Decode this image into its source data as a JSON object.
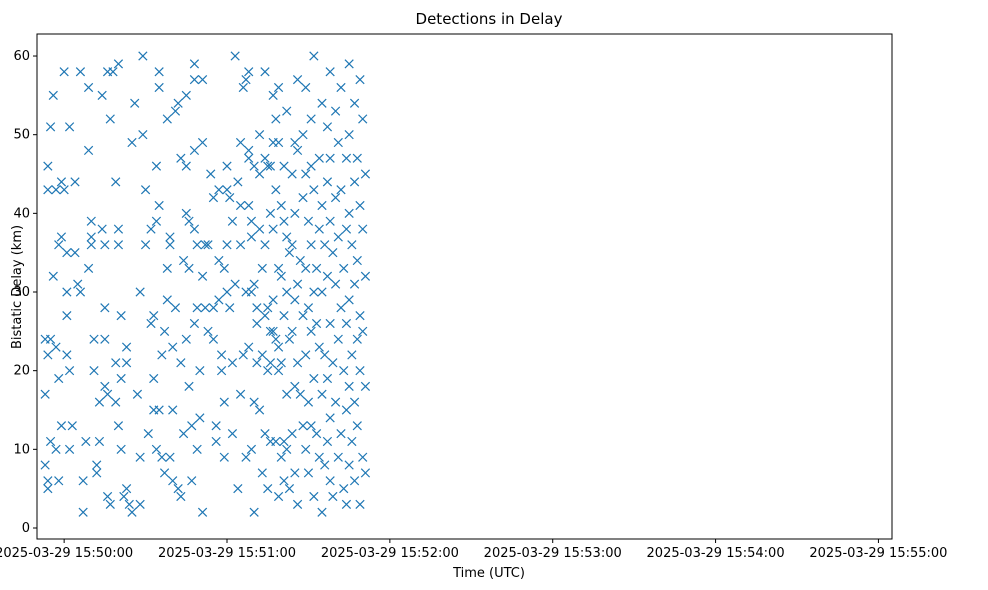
{
  "chart_data": {
    "type": "scatter",
    "title": "Detections in Delay",
    "xlabel": "Time (UTC)",
    "ylabel": "Bistatic Delay (km)",
    "marker": "x",
    "color": "#1f77b4",
    "x_unit": "seconds since 2025-03-29 15:50:00",
    "xlim": [
      -10,
      305
    ],
    "ylim": [
      -1.4,
      62.8
    ],
    "x_ticks": [
      {
        "value": 0,
        "label": "2025-03-29 15:50:00"
      },
      {
        "value": 60,
        "label": "2025-03-29 15:51:00"
      },
      {
        "value": 120,
        "label": "2025-03-29 15:52:00"
      },
      {
        "value": 180,
        "label": "2025-03-29 15:53:00"
      },
      {
        "value": 240,
        "label": "2025-03-29 15:54:00"
      },
      {
        "value": 300,
        "label": "2025-03-29 15:55:00"
      }
    ],
    "y_ticks": [
      {
        "value": 0,
        "label": "0"
      },
      {
        "value": 10,
        "label": "10"
      },
      {
        "value": 20,
        "label": "20"
      },
      {
        "value": 30,
        "label": "30"
      },
      {
        "value": 40,
        "label": "40"
      },
      {
        "value": 50,
        "label": "50"
      },
      {
        "value": 60,
        "label": "60"
      }
    ],
    "points": [
      [
        -7,
        24
      ],
      [
        -7,
        17
      ],
      [
        -6,
        46
      ],
      [
        -6,
        43
      ],
      [
        -5,
        51
      ],
      [
        -5,
        24
      ],
      [
        -6,
        22
      ],
      [
        -5,
        11
      ],
      [
        -4,
        55
      ],
      [
        -4,
        32
      ],
      [
        -3,
        43
      ],
      [
        -2,
        19
      ],
      [
        -3,
        10
      ],
      [
        -7,
        8
      ],
      [
        -6,
        6
      ],
      [
        -6,
        5
      ],
      [
        -2,
        6
      ],
      [
        -1,
        44
      ],
      [
        -2,
        36
      ],
      [
        -1,
        37
      ],
      [
        -1,
        13
      ],
      [
        -3,
        23
      ],
      [
        0,
        58
      ],
      [
        0,
        43
      ],
      [
        1,
        35
      ],
      [
        1,
        30
      ],
      [
        1,
        27
      ],
      [
        1,
        22
      ],
      [
        2,
        51
      ],
      [
        2,
        20
      ],
      [
        3,
        13
      ],
      [
        2,
        10
      ],
      [
        4,
        35
      ],
      [
        4,
        44
      ],
      [
        6,
        58
      ],
      [
        5,
        31
      ],
      [
        6,
        30
      ],
      [
        7,
        2
      ],
      [
        7,
        6
      ],
      [
        8,
        11
      ],
      [
        9,
        48
      ],
      [
        9,
        56
      ],
      [
        9,
        33
      ],
      [
        10,
        39
      ],
      [
        10,
        36
      ],
      [
        10,
        37
      ],
      [
        11,
        24
      ],
      [
        11,
        20
      ],
      [
        12,
        8
      ],
      [
        12,
        7
      ],
      [
        13,
        16
      ],
      [
        13,
        11
      ],
      [
        14,
        55
      ],
      [
        14,
        38
      ],
      [
        15,
        36
      ],
      [
        15,
        28
      ],
      [
        15,
        24
      ],
      [
        15,
        18
      ],
      [
        16,
        58
      ],
      [
        16,
        17
      ],
      [
        16,
        4
      ],
      [
        17,
        3
      ],
      [
        17,
        52
      ],
      [
        18,
        58
      ],
      [
        19,
        44
      ],
      [
        19,
        16
      ],
      [
        19,
        21
      ],
      [
        20,
        59
      ],
      [
        20,
        38
      ],
      [
        20,
        36
      ],
      [
        20,
        13
      ],
      [
        21,
        27
      ],
      [
        21,
        19
      ],
      [
        21,
        10
      ],
      [
        22,
        4
      ],
      [
        23,
        5
      ],
      [
        23,
        23
      ],
      [
        23,
        21
      ],
      [
        24,
        3
      ],
      [
        25,
        2
      ],
      [
        25,
        49
      ],
      [
        26,
        54
      ],
      [
        27,
        17
      ],
      [
        28,
        30
      ],
      [
        28,
        9
      ],
      [
        28,
        3
      ],
      [
        29,
        60
      ],
      [
        29,
        50
      ],
      [
        30,
        43
      ],
      [
        30,
        36
      ],
      [
        31,
        12
      ],
      [
        32,
        38
      ],
      [
        32,
        26
      ],
      [
        33,
        27
      ],
      [
        33,
        19
      ],
      [
        33,
        15
      ],
      [
        34,
        46
      ],
      [
        34,
        39
      ],
      [
        34,
        10
      ],
      [
        35,
        58
      ],
      [
        35,
        56
      ],
      [
        35,
        41
      ],
      [
        35,
        15
      ],
      [
        36,
        22
      ],
      [
        36,
        9
      ],
      [
        37,
        25
      ],
      [
        37,
        7
      ],
      [
        38,
        52
      ],
      [
        38,
        33
      ],
      [
        38,
        29
      ],
      [
        39,
        37
      ],
      [
        39,
        36
      ],
      [
        39,
        9
      ],
      [
        40,
        23
      ],
      [
        40,
        15
      ],
      [
        40,
        6
      ],
      [
        41,
        28
      ],
      [
        41,
        53
      ],
      [
        42,
        54
      ],
      [
        42,
        5
      ],
      [
        43,
        47
      ],
      [
        43,
        21
      ],
      [
        43,
        4
      ],
      [
        44,
        34
      ],
      [
        44,
        12
      ],
      [
        45,
        55
      ],
      [
        45,
        46
      ],
      [
        45,
        40
      ],
      [
        45,
        24
      ],
      [
        46,
        39
      ],
      [
        46,
        33
      ],
      [
        46,
        18
      ],
      [
        47,
        13
      ],
      [
        47,
        6
      ],
      [
        48,
        59
      ],
      [
        48,
        57
      ],
      [
        48,
        48
      ],
      [
        48,
        38
      ],
      [
        48,
        26
      ],
      [
        49,
        36
      ],
      [
        49,
        28
      ],
      [
        49,
        10
      ],
      [
        50,
        20
      ],
      [
        50,
        14
      ],
      [
        51,
        57
      ],
      [
        51,
        49
      ],
      [
        51,
        32
      ],
      [
        51,
        2
      ],
      [
        52,
        36
      ],
      [
        52,
        28
      ],
      [
        53,
        36
      ],
      [
        53,
        25
      ],
      [
        54,
        45
      ],
      [
        55,
        42
      ],
      [
        55,
        28
      ],
      [
        55,
        24
      ],
      [
        56,
        13
      ],
      [
        56,
        11
      ],
      [
        57,
        43
      ],
      [
        57,
        29
      ],
      [
        57,
        34
      ],
      [
        58,
        22
      ],
      [
        58,
        20
      ],
      [
        59,
        33
      ],
      [
        59,
        16
      ],
      [
        59,
        9
      ],
      [
        60,
        46
      ],
      [
        60,
        43
      ],
      [
        60,
        36
      ],
      [
        60,
        30
      ],
      [
        61,
        42
      ],
      [
        61,
        28
      ],
      [
        62,
        39
      ],
      [
        62,
        21
      ],
      [
        62,
        12
      ],
      [
        63,
        60
      ],
      [
        63,
        31
      ],
      [
        64,
        44
      ],
      [
        64,
        5
      ],
      [
        65,
        49
      ],
      [
        65,
        41
      ],
      [
        65,
        36
      ],
      [
        65,
        17
      ],
      [
        66,
        56
      ],
      [
        66,
        22
      ],
      [
        67,
        57
      ],
      [
        67,
        30
      ],
      [
        67,
        9
      ],
      [
        68,
        58
      ],
      [
        68,
        48
      ],
      [
        68,
        47
      ],
      [
        68,
        41
      ],
      [
        68,
        23
      ],
      [
        69,
        39
      ],
      [
        69,
        37
      ],
      [
        69,
        30
      ],
      [
        69,
        10
      ],
      [
        70,
        46
      ],
      [
        70,
        31
      ],
      [
        70,
        16
      ],
      [
        70,
        2
      ],
      [
        71,
        28
      ],
      [
        71,
        26
      ],
      [
        71,
        21
      ],
      [
        72,
        50
      ],
      [
        72,
        45
      ],
      [
        72,
        38
      ],
      [
        72,
        15
      ],
      [
        73,
        33
      ],
      [
        73,
        22
      ],
      [
        73,
        7
      ],
      [
        74,
        58
      ],
      [
        74,
        47
      ],
      [
        74,
        36
      ],
      [
        74,
        27
      ],
      [
        74,
        12
      ],
      [
        75,
        46
      ],
      [
        75,
        28
      ],
      [
        75,
        20
      ],
      [
        75,
        5
      ],
      [
        76,
        46
      ],
      [
        76,
        40
      ],
      [
        76,
        25
      ],
      [
        76,
        21
      ],
      [
        76,
        11
      ],
      [
        77,
        55
      ],
      [
        77,
        49
      ],
      [
        77,
        38
      ],
      [
        77,
        29
      ],
      [
        77,
        25
      ],
      [
        78,
        52
      ],
      [
        78,
        43
      ],
      [
        78,
        24
      ],
      [
        78,
        11
      ],
      [
        79,
        56
      ],
      [
        79,
        49
      ],
      [
        79,
        33
      ],
      [
        79,
        23
      ],
      [
        79,
        20
      ],
      [
        79,
        4
      ],
      [
        80,
        41
      ],
      [
        80,
        32
      ],
      [
        80,
        21
      ],
      [
        80,
        9
      ],
      [
        81,
        46
      ],
      [
        81,
        39
      ],
      [
        81,
        27
      ],
      [
        81,
        11
      ],
      [
        81,
        6
      ],
      [
        82,
        53
      ],
      [
        82,
        37
      ],
      [
        82,
        30
      ],
      [
        82,
        17
      ],
      [
        82,
        10
      ],
      [
        83,
        35
      ],
      [
        83,
        24
      ],
      [
        83,
        5
      ],
      [
        84,
        45
      ],
      [
        84,
        36
      ],
      [
        84,
        25
      ],
      [
        84,
        12
      ],
      [
        85,
        49
      ],
      [
        85,
        40
      ],
      [
        85,
        29
      ],
      [
        85,
        18
      ],
      [
        85,
        7
      ],
      [
        86,
        57
      ],
      [
        86,
        48
      ],
      [
        86,
        31
      ],
      [
        86,
        21
      ],
      [
        86,
        3
      ],
      [
        87,
        34
      ],
      [
        87,
        17
      ],
      [
        88,
        50
      ],
      [
        88,
        42
      ],
      [
        88,
        27
      ],
      [
        88,
        13
      ],
      [
        89,
        56
      ],
      [
        89,
        45
      ],
      [
        89,
        33
      ],
      [
        89,
        22
      ],
      [
        89,
        10
      ],
      [
        90,
        39
      ],
      [
        90,
        28
      ],
      [
        90,
        16
      ],
      [
        90,
        7
      ],
      [
        91,
        52
      ],
      [
        91,
        46
      ],
      [
        91,
        36
      ],
      [
        91,
        25
      ],
      [
        91,
        13
      ],
      [
        92,
        60
      ],
      [
        92,
        43
      ],
      [
        92,
        30
      ],
      [
        92,
        19
      ],
      [
        92,
        4
      ],
      [
        93,
        33
      ],
      [
        93,
        26
      ],
      [
        93,
        12
      ],
      [
        94,
        47
      ],
      [
        94,
        38
      ],
      [
        94,
        23
      ],
      [
        94,
        9
      ],
      [
        95,
        54
      ],
      [
        95,
        41
      ],
      [
        95,
        30
      ],
      [
        95,
        17
      ],
      [
        95,
        2
      ],
      [
        96,
        36
      ],
      [
        96,
        22
      ],
      [
        96,
        8
      ],
      [
        97,
        51
      ],
      [
        97,
        44
      ],
      [
        97,
        32
      ],
      [
        97,
        19
      ],
      [
        97,
        11
      ],
      [
        98,
        58
      ],
      [
        98,
        47
      ],
      [
        98,
        39
      ],
      [
        98,
        26
      ],
      [
        98,
        14
      ],
      [
        98,
        6
      ],
      [
        99,
        35
      ],
      [
        99,
        21
      ],
      [
        99,
        4
      ],
      [
        100,
        53
      ],
      [
        100,
        42
      ],
      [
        100,
        31
      ],
      [
        100,
        16
      ],
      [
        101,
        49
      ],
      [
        101,
        37
      ],
      [
        101,
        24
      ],
      [
        101,
        9
      ],
      [
        102,
        56
      ],
      [
        102,
        43
      ],
      [
        102,
        28
      ],
      [
        102,
        12
      ],
      [
        103,
        33
      ],
      [
        103,
        20
      ],
      [
        103,
        5
      ],
      [
        104,
        47
      ],
      [
        104,
        38
      ],
      [
        104,
        26
      ],
      [
        104,
        15
      ],
      [
        104,
        3
      ],
      [
        105,
        59
      ],
      [
        105,
        50
      ],
      [
        105,
        40
      ],
      [
        105,
        29
      ],
      [
        105,
        18
      ],
      [
        105,
        8
      ],
      [
        106,
        36
      ],
      [
        106,
        22
      ],
      [
        106,
        11
      ],
      [
        107,
        54
      ],
      [
        107,
        44
      ],
      [
        107,
        31
      ],
      [
        107,
        16
      ],
      [
        107,
        6
      ],
      [
        108,
        47
      ],
      [
        108,
        34
      ],
      [
        108,
        24
      ],
      [
        108,
        13
      ],
      [
        109,
        57
      ],
      [
        109,
        41
      ],
      [
        109,
        27
      ],
      [
        109,
        20
      ],
      [
        109,
        3
      ],
      [
        110,
        52
      ],
      [
        110,
        38
      ],
      [
        110,
        25
      ],
      [
        110,
        9
      ],
      [
        111,
        45
      ],
      [
        111,
        32
      ],
      [
        111,
        18
      ],
      [
        111,
        7
      ]
    ]
  }
}
